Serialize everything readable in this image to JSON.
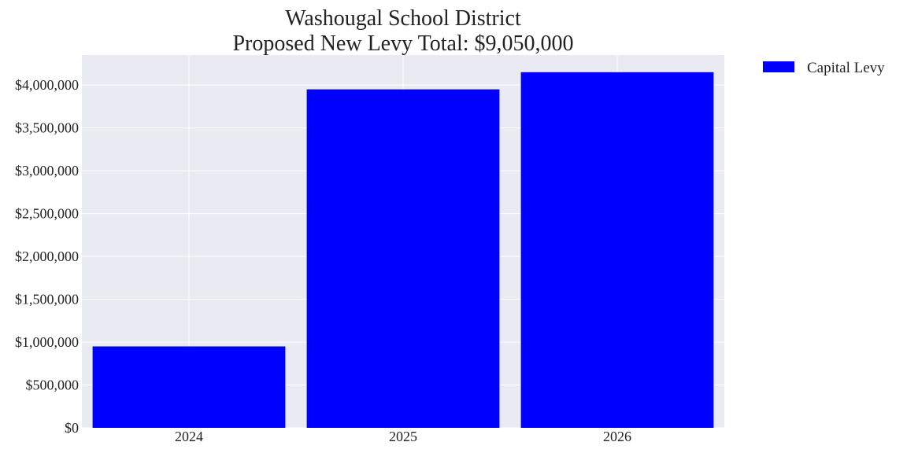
{
  "chart_data": {
    "type": "bar",
    "title": "Washougal School District",
    "subtitle": "Proposed New Levy Total: $9,050,000",
    "categories": [
      "2024",
      "2025",
      "2026"
    ],
    "series": [
      {
        "name": "Capital Levy",
        "values": [
          950000,
          3950000,
          4150000
        ],
        "color": "#0000ff"
      }
    ],
    "xlabel": "",
    "ylabel": "",
    "ylim": [
      0,
      4350000
    ],
    "yticks": [
      0,
      500000,
      1000000,
      1500000,
      2000000,
      2500000,
      3000000,
      3500000,
      4000000
    ],
    "ytick_labels": [
      "$0",
      "$500,000",
      "$1,000,000",
      "$1,500,000",
      "$2,000,000",
      "$2,500,000",
      "$3,000,000",
      "$3,500,000",
      "$4,000,000"
    ],
    "grid": true,
    "legend_position": "outside-top-right",
    "background_color": "#eaeaf2",
    "grid_color": "#ffffff"
  }
}
